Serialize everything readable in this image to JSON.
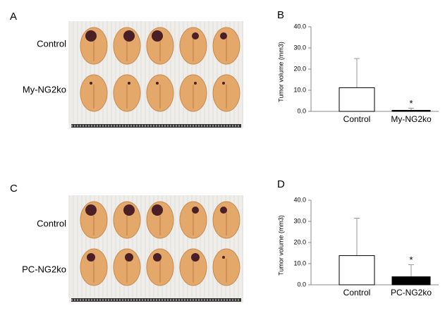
{
  "figure": {
    "panel_labels": [
      "A",
      "B",
      "C",
      "D"
    ],
    "photo_labels": [
      [
        "Control",
        "My-NG2ko"
      ],
      [
        "Control",
        "PC-NG2ko"
      ]
    ]
  },
  "chart_data": [
    {
      "type": "bar",
      "ylabel": "Tumor volume (mm3)",
      "categories": [
        "Control",
        "My-NG2ko"
      ],
      "values": [
        11.2,
        0.5
      ],
      "errors": [
        13.8,
        1.0
      ],
      "colors": [
        "#ffffff",
        "#000000"
      ],
      "annotations": [
        "*"
      ],
      "ylim": [
        0,
        40
      ],
      "yticks": [
        {
          "value": 0,
          "label": "0.0"
        },
        {
          "value": 10,
          "label": "10.0"
        },
        {
          "value": 20,
          "label": "20.0"
        },
        {
          "value": 30,
          "label": "30.0"
        },
        {
          "value": 40,
          "label": "40.0"
        }
      ]
    },
    {
      "type": "bar",
      "ylabel": "Tumor volume (mm3)",
      "categories": [
        "Control",
        "PC-NG2ko"
      ],
      "values": [
        13.8,
        3.8
      ],
      "errors": [
        17.7,
        5.7
      ],
      "colors": [
        "#ffffff",
        "#000000"
      ],
      "annotations": [
        "*"
      ],
      "ylim": [
        0,
        40
      ],
      "yticks": [
        {
          "value": 0,
          "label": "0.0"
        },
        {
          "value": 10,
          "label": "10.0"
        },
        {
          "value": 20,
          "label": "20.0"
        },
        {
          "value": 30,
          "label": "30.0"
        },
        {
          "value": 40,
          "label": "40.0"
        }
      ]
    }
  ]
}
